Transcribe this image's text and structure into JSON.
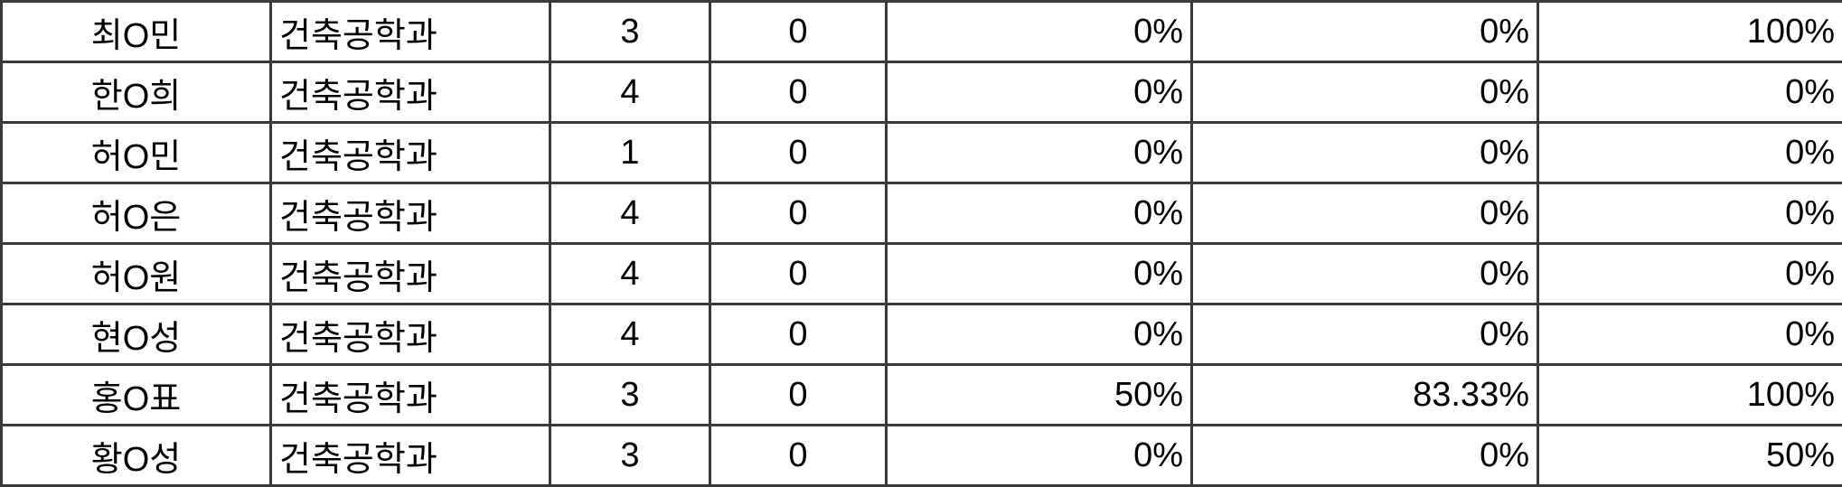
{
  "rows": [
    {
      "name": "최O민",
      "dept": "건축공학과",
      "grade": "3",
      "count": "0",
      "p1": "0%",
      "p2": "0%",
      "p3": "100%"
    },
    {
      "name": "한O희",
      "dept": "건축공학과",
      "grade": "4",
      "count": "0",
      "p1": "0%",
      "p2": "0%",
      "p3": "0%"
    },
    {
      "name": "허O민",
      "dept": "건축공학과",
      "grade": "1",
      "count": "0",
      "p1": "0%",
      "p2": "0%",
      "p3": "0%"
    },
    {
      "name": "허O은",
      "dept": "건축공학과",
      "grade": "4",
      "count": "0",
      "p1": "0%",
      "p2": "0%",
      "p3": "0%"
    },
    {
      "name": "허O원",
      "dept": "건축공학과",
      "grade": "4",
      "count": "0",
      "p1": "0%",
      "p2": "0%",
      "p3": "0%"
    },
    {
      "name": "현O성",
      "dept": "건축공학과",
      "grade": "4",
      "count": "0",
      "p1": "0%",
      "p2": "0%",
      "p3": "0%"
    },
    {
      "name": "홍O표",
      "dept": "건축공학과",
      "grade": "3",
      "count": "0",
      "p1": "50%",
      "p2": "83.33%",
      "p3": "100%"
    },
    {
      "name": "황O성",
      "dept": "건축공학과",
      "grade": "3",
      "count": "0",
      "p1": "0%",
      "p2": "0%",
      "p3": "50%"
    }
  ]
}
